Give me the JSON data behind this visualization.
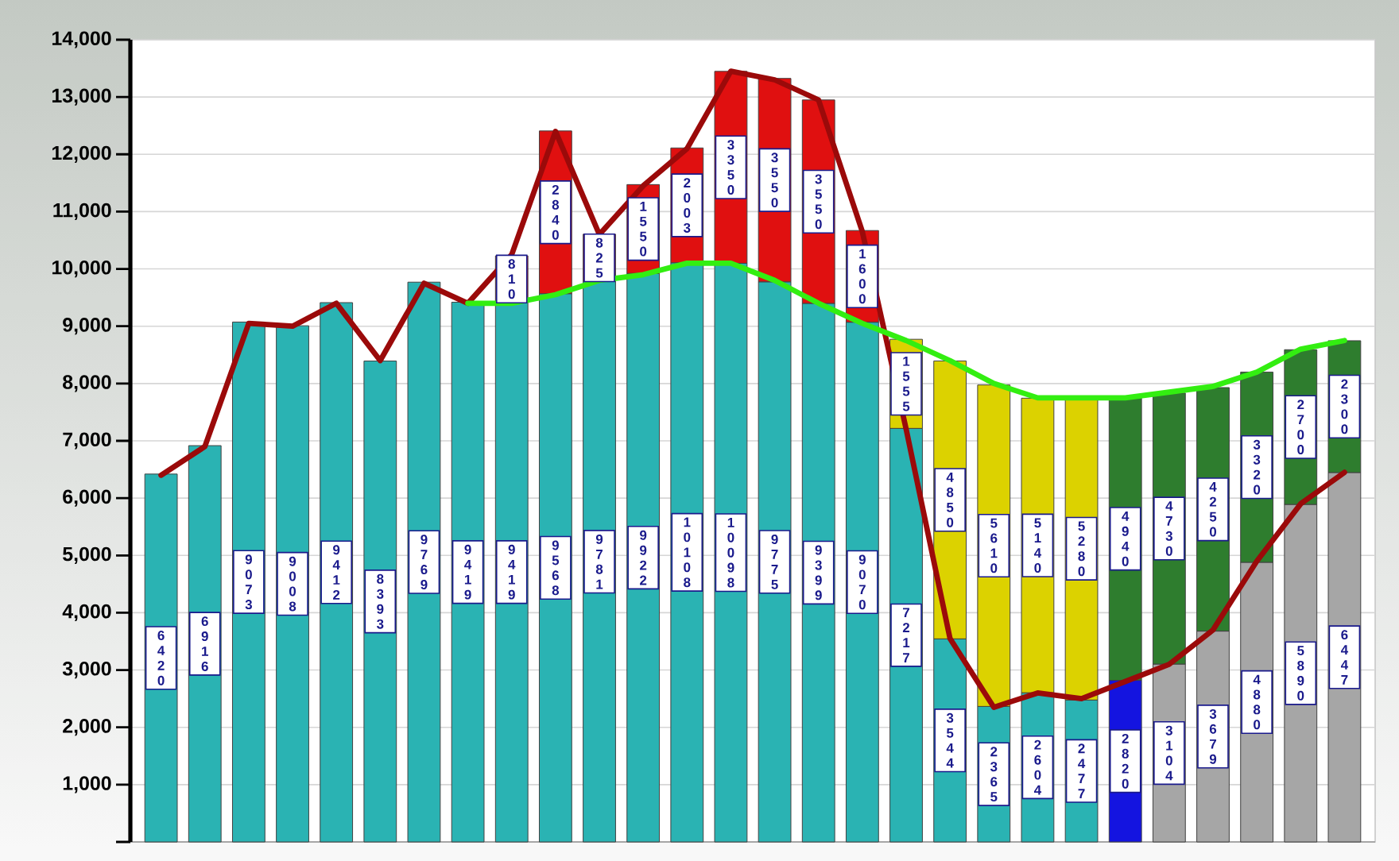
{
  "chart_data": {
    "type": "bar",
    "stacked": true,
    "grid": "y",
    "categories": [
      null,
      null,
      null,
      null,
      null,
      null,
      null,
      null,
      null,
      null,
      null,
      null,
      null,
      null,
      null,
      null,
      null,
      null,
      null,
      null,
      null,
      null,
      null,
      null,
      null,
      null,
      null,
      null
    ],
    "ylim": [
      0,
      14000
    ],
    "yticks": [
      {
        "value": 0,
        "label": null
      },
      {
        "value": 1000,
        "label": "1,000"
      },
      {
        "value": 2000,
        "label": "2,000"
      },
      {
        "value": 3000,
        "label": "3,000"
      },
      {
        "value": 4000,
        "label": "4,000"
      },
      {
        "value": 5000,
        "label": "5,000"
      },
      {
        "value": 6000,
        "label": "6,000"
      },
      {
        "value": 7000,
        "label": "7,000"
      },
      {
        "value": 8000,
        "label": "8,000"
      },
      {
        "value": 9000,
        "label": "9,000"
      },
      {
        "value": 10000,
        "label": "10,000"
      },
      {
        "value": 11000,
        "label": "11,000"
      },
      {
        "value": 12000,
        "label": "12,000"
      },
      {
        "value": 13000,
        "label": "13,000"
      },
      {
        "value": 14000,
        "label": "14,000"
      }
    ],
    "series": [
      {
        "color": "#2ab3b3",
        "values": [
          6420,
          6916,
          9073,
          9008,
          9412,
          8393,
          9769,
          9419,
          9419,
          9568,
          9781,
          9922,
          10108,
          10098,
          9775,
          9399,
          9070,
          7217,
          3544,
          2365,
          2604,
          2477,
          null,
          null,
          null,
          null,
          null,
          null
        ],
        "value_labels": [
          "6420",
          "6916",
          "9073",
          "9008",
          "9412",
          "8393",
          "9769",
          "9419",
          "9419",
          "9568",
          "9781",
          "9922",
          "10108",
          "10098",
          "9775",
          "9399",
          "9070",
          "7217",
          "3544",
          "2365",
          "2604",
          "2477",
          null,
          null,
          null,
          null,
          null,
          null
        ]
      },
      {
        "color": "#1414e0",
        "values": [
          null,
          null,
          null,
          null,
          null,
          null,
          null,
          null,
          null,
          null,
          null,
          null,
          null,
          null,
          null,
          null,
          null,
          null,
          null,
          null,
          null,
          null,
          2820,
          null,
          null,
          null,
          null,
          null
        ],
        "value_labels": [
          null,
          null,
          null,
          null,
          null,
          null,
          null,
          null,
          null,
          null,
          null,
          null,
          null,
          null,
          null,
          null,
          null,
          null,
          null,
          null,
          null,
          null,
          "2820",
          null,
          null,
          null,
          null,
          null
        ]
      },
      {
        "color": "#a6a6a6",
        "values": [
          null,
          null,
          null,
          null,
          null,
          null,
          null,
          null,
          null,
          null,
          null,
          null,
          null,
          null,
          null,
          null,
          null,
          null,
          null,
          null,
          null,
          null,
          null,
          3104,
          3679,
          4880,
          5890,
          6447
        ],
        "value_labels": [
          null,
          null,
          null,
          null,
          null,
          null,
          null,
          null,
          null,
          null,
          null,
          null,
          null,
          null,
          null,
          null,
          null,
          null,
          null,
          null,
          null,
          null,
          null,
          "3104",
          "3679",
          "4880",
          "5890",
          "6447"
        ]
      },
      {
        "color": "#e01010",
        "values": [
          null,
          null,
          null,
          null,
          null,
          null,
          null,
          null,
          810,
          2840,
          825,
          1550,
          2003,
          3350,
          3550,
          3550,
          1600,
          null,
          null,
          null,
          null,
          null,
          null,
          null,
          null,
          null,
          null,
          null
        ],
        "value_labels": [
          null,
          null,
          null,
          null,
          null,
          null,
          null,
          null,
          "810",
          "2840",
          "825",
          "1550",
          "2003",
          "3350",
          "3550",
          "3550",
          "1600",
          null,
          null,
          null,
          null,
          null,
          null,
          null,
          null,
          null,
          null,
          null
        ]
      },
      {
        "color": "#dcd200",
        "values": [
          null,
          null,
          null,
          null,
          null,
          null,
          null,
          null,
          null,
          null,
          null,
          null,
          null,
          null,
          null,
          null,
          null,
          1555,
          4850,
          5610,
          5140,
          5280,
          null,
          null,
          null,
          null,
          null,
          null
        ],
        "value_labels": [
          null,
          null,
          null,
          null,
          null,
          null,
          null,
          null,
          null,
          null,
          null,
          null,
          null,
          null,
          null,
          null,
          null,
          "1555",
          "4850",
          "5610",
          "5140",
          "5280",
          null,
          null,
          null,
          null,
          null,
          null
        ]
      },
      {
        "color": "#2e7d2e",
        "values": [
          null,
          null,
          null,
          null,
          null,
          null,
          null,
          null,
          null,
          null,
          null,
          null,
          null,
          null,
          null,
          null,
          null,
          null,
          null,
          null,
          null,
          null,
          4940,
          4730,
          4250,
          3320,
          2700,
          2300
        ],
        "value_labels": [
          null,
          null,
          null,
          null,
          null,
          null,
          null,
          null,
          null,
          null,
          null,
          null,
          null,
          null,
          null,
          null,
          null,
          null,
          null,
          null,
          null,
          null,
          "4940",
          "4730",
          "4250",
          "3320",
          "2700",
          "2300"
        ]
      },
      {
        "type": "line",
        "color": "#9b0a0a",
        "values": [
          6400,
          6900,
          9050,
          9000,
          9400,
          8400,
          9750,
          9400,
          10250,
          12400,
          10600,
          11450,
          12100,
          13450,
          13300,
          12950,
          10650,
          7200,
          3550,
          2350,
          2600,
          2500,
          2800,
          3100,
          3700,
          4900,
          5900,
          6450
        ]
      },
      {
        "type": "line",
        "color": "#33ee11",
        "values": [
          null,
          null,
          null,
          null,
          null,
          null,
          null,
          9400,
          9400,
          9550,
          9800,
          9900,
          10100,
          10100,
          9800,
          9400,
          9050,
          8750,
          8400,
          8000,
          7750,
          7750,
          7750,
          7850,
          7950,
          8200,
          8600,
          8750
        ]
      }
    ]
  }
}
